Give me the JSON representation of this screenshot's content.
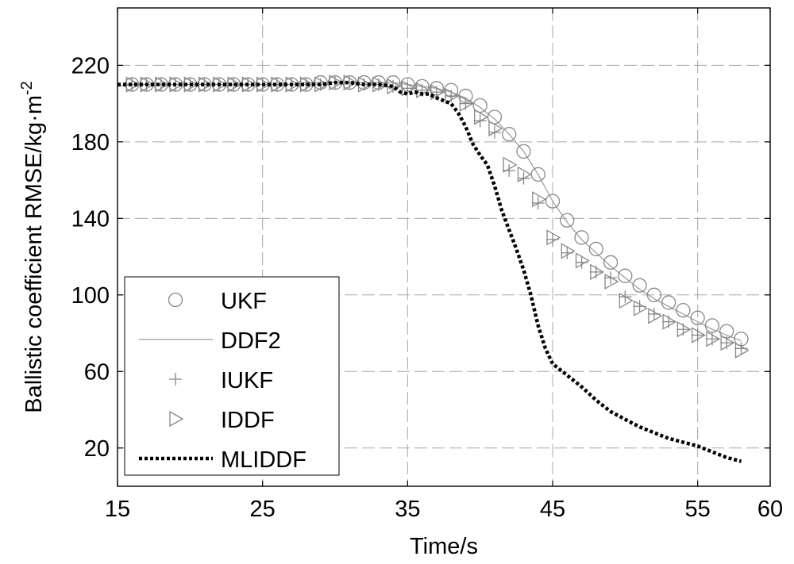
{
  "chart_data": {
    "type": "line",
    "title": "",
    "xlabel": "Time/s",
    "ylabel_main": "Ballistic coefficient RMSE/kg·m",
    "ylabel_sup": "-2",
    "xlim": [
      15,
      60
    ],
    "ylim": [
      0,
      250
    ],
    "xticks": [
      15,
      25,
      35,
      45,
      55,
      60
    ],
    "xtick_labels": [
      "15",
      "25",
      "35",
      "45",
      "55",
      "60"
    ],
    "yticks": [
      20,
      60,
      100,
      140,
      180,
      220
    ],
    "ytick_labels": [
      "20",
      "60",
      "100",
      "140",
      "180",
      "220"
    ],
    "grid": true,
    "legend_position": "lower-left",
    "series": [
      {
        "name": "UKF",
        "marker": "circle",
        "line": "none",
        "color": "#888888",
        "x": [
          16,
          17,
          18,
          19,
          20,
          21,
          22,
          23,
          24,
          25,
          26,
          27,
          28,
          29,
          30,
          31,
          32,
          33,
          34,
          35,
          36,
          37,
          38,
          39,
          40,
          41,
          42,
          43,
          44,
          45,
          46,
          47,
          48,
          49,
          50,
          51,
          52,
          53,
          54,
          55,
          56,
          57,
          58
        ],
        "y": [
          210,
          210,
          210,
          210,
          210,
          210,
          210,
          210,
          210,
          210,
          210,
          210,
          210,
          211,
          211,
          211,
          211,
          211,
          211,
          210,
          209,
          208,
          207,
          204,
          199,
          193,
          184,
          175,
          163,
          149,
          139,
          130,
          124,
          117,
          110,
          105,
          100,
          96,
          92,
          88,
          84,
          81,
          77
        ]
      },
      {
        "name": "DDF2",
        "marker": "none",
        "line": "solid",
        "color": "#999999",
        "x": [
          15,
          16,
          17,
          18,
          19,
          20,
          21,
          22,
          23,
          24,
          25,
          26,
          27,
          28,
          29,
          30,
          31,
          32,
          33,
          34,
          35,
          36,
          37,
          38,
          39,
          40,
          41,
          42,
          43,
          44,
          45,
          46,
          47,
          48,
          49,
          50,
          51,
          52,
          53,
          54,
          55,
          56,
          57,
          58
        ],
        "y": [
          209,
          210,
          210,
          210,
          210,
          210,
          210,
          210,
          210,
          210,
          210,
          210,
          210,
          211,
          211,
          211,
          211,
          211,
          211,
          211,
          210,
          209,
          208,
          206,
          203,
          198,
          192,
          184,
          175,
          163,
          149,
          138,
          129,
          122,
          115,
          109,
          103,
          98,
          94,
          90,
          86,
          82,
          79,
          76
        ]
      },
      {
        "name": "IUKF",
        "marker": "plus",
        "line": "none",
        "color": "#888888",
        "x": [
          16,
          17,
          18,
          19,
          20,
          21,
          22,
          23,
          24,
          25,
          26,
          27,
          28,
          29,
          30,
          31,
          32,
          33,
          34,
          35,
          36,
          37,
          38,
          39,
          40,
          41,
          42,
          43,
          44,
          45,
          46,
          47,
          48,
          49,
          50,
          51,
          52,
          53,
          54,
          55,
          56,
          57,
          58
        ],
        "y": [
          210,
          210,
          210,
          210,
          210,
          210,
          210,
          210,
          210,
          210,
          210,
          210,
          210,
          210,
          211,
          211,
          210,
          210,
          209,
          208,
          207,
          206,
          204,
          200,
          191,
          185,
          165,
          161,
          148,
          129,
          122,
          117,
          112,
          109,
          99,
          94,
          90,
          86,
          82,
          79,
          77,
          75,
          72
        ]
      },
      {
        "name": "IDDF",
        "marker": "triangle-right",
        "line": "none",
        "color": "#888888",
        "x": [
          16,
          17,
          18,
          19,
          20,
          21,
          22,
          23,
          24,
          25,
          26,
          27,
          28,
          29,
          30,
          31,
          32,
          33,
          34,
          35,
          36,
          37,
          38,
          39,
          40,
          41,
          42,
          43,
          44,
          45,
          46,
          47,
          48,
          49,
          50,
          51,
          52,
          53,
          54,
          55,
          56,
          57,
          58
        ],
        "y": [
          210,
          210,
          210,
          210,
          210,
          210,
          210,
          210,
          210,
          210,
          210,
          210,
          210,
          210,
          211,
          211,
          210,
          210,
          209,
          208,
          207,
          206,
          204,
          200,
          193,
          187,
          168,
          163,
          150,
          130,
          123,
          118,
          112,
          107,
          97,
          93,
          89,
          86,
          82,
          79,
          77,
          75,
          71
        ]
      },
      {
        "name": "MLIDDF",
        "marker": "none",
        "line": "dotted",
        "color": "#000000",
        "x": [
          15,
          16,
          17,
          18,
          19,
          20,
          21,
          22,
          23,
          24,
          25,
          26,
          27,
          28,
          29,
          30,
          31,
          32,
          33,
          34,
          34.5,
          35,
          35.5,
          36,
          36.5,
          37,
          38,
          38.5,
          39,
          39.5,
          40,
          40.5,
          41,
          41.5,
          42,
          42.5,
          43,
          43.5,
          44,
          44.5,
          45,
          46,
          47,
          48,
          49,
          50,
          51,
          52,
          53,
          54,
          55,
          56,
          57,
          58
        ],
        "y": [
          210,
          210,
          210,
          210,
          210,
          210,
          210,
          210,
          210,
          210,
          210,
          210,
          210,
          210,
          210,
          211,
          211,
          210,
          210,
          209,
          206,
          205,
          206,
          205,
          205,
          203,
          200,
          195,
          188,
          179,
          173,
          168,
          157,
          144,
          134,
          124,
          113,
          100,
          84,
          72,
          64,
          58,
          52,
          45,
          39,
          35,
          31,
          28,
          25,
          23,
          21,
          18,
          15,
          13
        ]
      }
    ]
  }
}
